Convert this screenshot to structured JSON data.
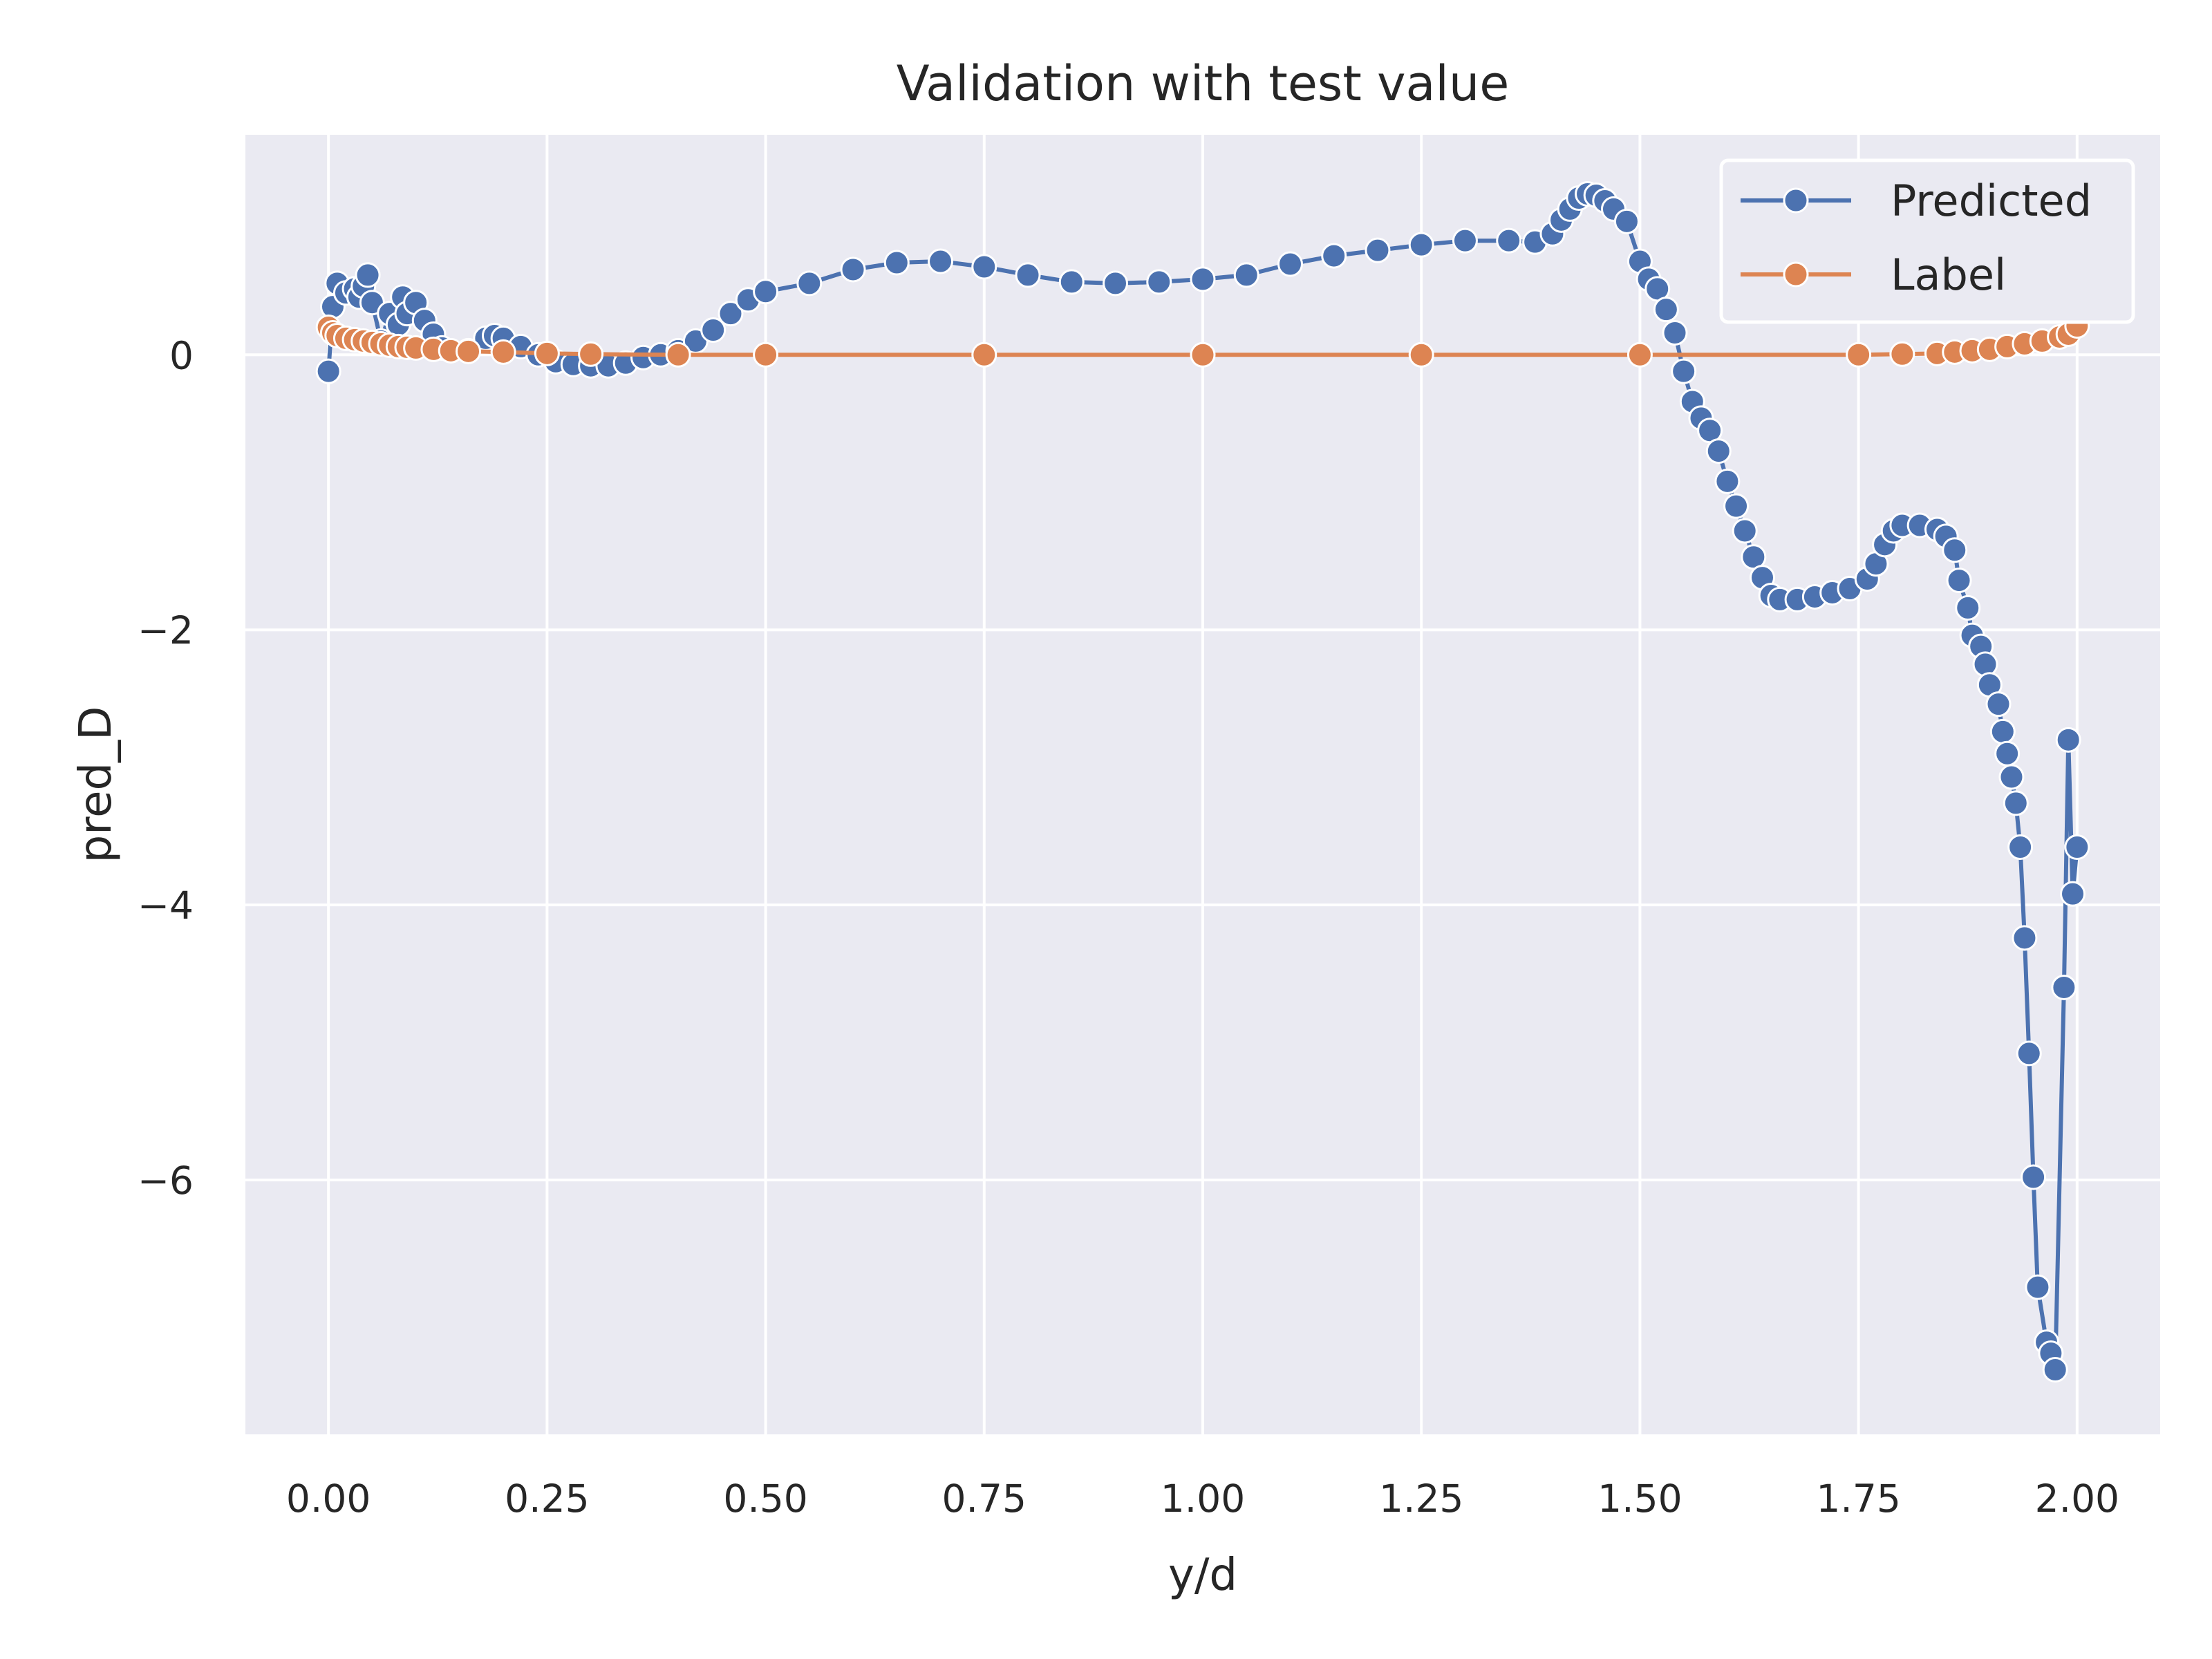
{
  "chart_data": {
    "type": "line",
    "title": "Validation with test value",
    "xlabel": "y/d",
    "ylabel": "pred_D",
    "xlim": [
      -0.095,
      2.095
    ],
    "ylim": [
      -7.85,
      1.6
    ],
    "xticks": [
      0.0,
      0.25,
      0.5,
      0.75,
      1.0,
      1.25,
      1.5,
      1.75,
      2.0
    ],
    "xtick_labels": [
      "0.00",
      "0.25",
      "0.50",
      "0.75",
      "1.00",
      "1.25",
      "1.50",
      "1.75",
      "2.00"
    ],
    "yticks": [
      0,
      -2,
      -4,
      -6
    ],
    "ytick_labels": [
      "0",
      "−2",
      "−4",
      "−6"
    ],
    "grid": true,
    "legend_position": "upper-right",
    "colors": {
      "background": "#eaeaf2",
      "grid": "#ffffff",
      "predicted": "#4c72b0",
      "label": "#dd8452"
    },
    "marker": "circle",
    "legend": [
      "Predicted",
      "Label"
    ],
    "series": [
      {
        "name": "Predicted",
        "color": "#4c72b0",
        "points": [
          [
            0.0,
            -0.12
          ],
          [
            0.005,
            0.35
          ],
          [
            0.01,
            0.52
          ],
          [
            0.02,
            0.45
          ],
          [
            0.03,
            0.48
          ],
          [
            0.035,
            0.42
          ],
          [
            0.04,
            0.5
          ],
          [
            0.045,
            0.58
          ],
          [
            0.05,
            0.38
          ],
          [
            0.06,
            0.1
          ],
          [
            0.07,
            0.3
          ],
          [
            0.08,
            0.22
          ],
          [
            0.085,
            0.42
          ],
          [
            0.09,
            0.3
          ],
          [
            0.1,
            0.38
          ],
          [
            0.11,
            0.25
          ],
          [
            0.12,
            0.15
          ],
          [
            0.13,
            0.05
          ],
          [
            0.16,
            0.03
          ],
          [
            0.18,
            0.12
          ],
          [
            0.19,
            0.14
          ],
          [
            0.2,
            0.12
          ],
          [
            0.22,
            0.06
          ],
          [
            0.24,
            0.0
          ],
          [
            0.26,
            -0.05
          ],
          [
            0.28,
            -0.07
          ],
          [
            0.3,
            -0.08
          ],
          [
            0.32,
            -0.08
          ],
          [
            0.34,
            -0.06
          ],
          [
            0.36,
            -0.02
          ],
          [
            0.38,
            0.0
          ],
          [
            0.4,
            0.03
          ],
          [
            0.42,
            0.1
          ],
          [
            0.44,
            0.18
          ],
          [
            0.46,
            0.3
          ],
          [
            0.48,
            0.4
          ],
          [
            0.5,
            0.46
          ],
          [
            0.55,
            0.52
          ],
          [
            0.6,
            0.62
          ],
          [
            0.65,
            0.67
          ],
          [
            0.7,
            0.68
          ],
          [
            0.75,
            0.64
          ],
          [
            0.8,
            0.58
          ],
          [
            0.85,
            0.53
          ],
          [
            0.9,
            0.52
          ],
          [
            0.95,
            0.53
          ],
          [
            1.0,
            0.55
          ],
          [
            1.05,
            0.58
          ],
          [
            1.1,
            0.66
          ],
          [
            1.15,
            0.72
          ],
          [
            1.2,
            0.76
          ],
          [
            1.25,
            0.8
          ],
          [
            1.3,
            0.83
          ],
          [
            1.35,
            0.83
          ],
          [
            1.38,
            0.82
          ],
          [
            1.4,
            0.88
          ],
          [
            1.41,
            0.98
          ],
          [
            1.42,
            1.06
          ],
          [
            1.43,
            1.14
          ],
          [
            1.44,
            1.17
          ],
          [
            1.45,
            1.16
          ],
          [
            1.46,
            1.12
          ],
          [
            1.47,
            1.06
          ],
          [
            1.485,
            0.97
          ],
          [
            1.5,
            0.68
          ],
          [
            1.51,
            0.55
          ],
          [
            1.52,
            0.48
          ],
          [
            1.53,
            0.33
          ],
          [
            1.54,
            0.16
          ],
          [
            1.55,
            -0.12
          ],
          [
            1.56,
            -0.34
          ],
          [
            1.57,
            -0.46
          ],
          [
            1.58,
            -0.55
          ],
          [
            1.59,
            -0.7
          ],
          [
            1.6,
            -0.92
          ],
          [
            1.61,
            -1.1
          ],
          [
            1.62,
            -1.28
          ],
          [
            1.63,
            -1.47
          ],
          [
            1.64,
            -1.62
          ],
          [
            1.65,
            -1.75
          ],
          [
            1.66,
            -1.78
          ],
          [
            1.68,
            -1.78
          ],
          [
            1.7,
            -1.76
          ],
          [
            1.72,
            -1.73
          ],
          [
            1.74,
            -1.7
          ],
          [
            1.76,
            -1.63
          ],
          [
            1.77,
            -1.52
          ],
          [
            1.78,
            -1.38
          ],
          [
            1.79,
            -1.28
          ],
          [
            1.8,
            -1.24
          ],
          [
            1.82,
            -1.24
          ],
          [
            1.84,
            -1.27
          ],
          [
            1.85,
            -1.32
          ],
          [
            1.86,
            -1.42
          ],
          [
            1.865,
            -1.64
          ],
          [
            1.875,
            -1.84
          ],
          [
            1.88,
            -2.04
          ],
          [
            1.89,
            -2.12
          ],
          [
            1.895,
            -2.25
          ],
          [
            1.9,
            -2.4
          ],
          [
            1.91,
            -2.54
          ],
          [
            1.915,
            -2.74
          ],
          [
            1.92,
            -2.9
          ],
          [
            1.925,
            -3.07
          ],
          [
            1.93,
            -3.26
          ],
          [
            1.935,
            -3.58
          ],
          [
            1.94,
            -4.24
          ],
          [
            1.945,
            -5.08
          ],
          [
            1.95,
            -5.98
          ],
          [
            1.955,
            -6.78
          ],
          [
            1.965,
            -7.18
          ],
          [
            1.97,
            -7.26
          ],
          [
            1.975,
            -7.38
          ],
          [
            1.985,
            -4.6
          ],
          [
            1.99,
            -2.8
          ],
          [
            1.995,
            -3.92
          ],
          [
            2.0,
            -3.58
          ]
        ]
      },
      {
        "name": "Label",
        "color": "#dd8452",
        "points": [
          [
            0.0,
            0.2
          ],
          [
            0.005,
            0.16
          ],
          [
            0.01,
            0.14
          ],
          [
            0.02,
            0.12
          ],
          [
            0.03,
            0.11
          ],
          [
            0.04,
            0.1
          ],
          [
            0.05,
            0.09
          ],
          [
            0.06,
            0.08
          ],
          [
            0.07,
            0.07
          ],
          [
            0.08,
            0.06
          ],
          [
            0.09,
            0.055
          ],
          [
            0.1,
            0.05
          ],
          [
            0.12,
            0.04
          ],
          [
            0.14,
            0.03
          ],
          [
            0.16,
            0.025
          ],
          [
            0.2,
            0.02
          ],
          [
            0.25,
            0.01
          ],
          [
            0.3,
            0.005
          ],
          [
            0.4,
            0.0
          ],
          [
            0.5,
            0.0
          ],
          [
            0.75,
            0.0
          ],
          [
            1.0,
            0.0
          ],
          [
            1.25,
            0.0
          ],
          [
            1.5,
            0.0
          ],
          [
            1.75,
            0.0
          ],
          [
            1.8,
            0.005
          ],
          [
            1.84,
            0.01
          ],
          [
            1.86,
            0.02
          ],
          [
            1.88,
            0.03
          ],
          [
            1.9,
            0.04
          ],
          [
            1.92,
            0.06
          ],
          [
            1.94,
            0.08
          ],
          [
            1.96,
            0.1
          ],
          [
            1.98,
            0.13
          ],
          [
            1.99,
            0.15
          ],
          [
            2.0,
            0.21
          ]
        ]
      }
    ]
  }
}
